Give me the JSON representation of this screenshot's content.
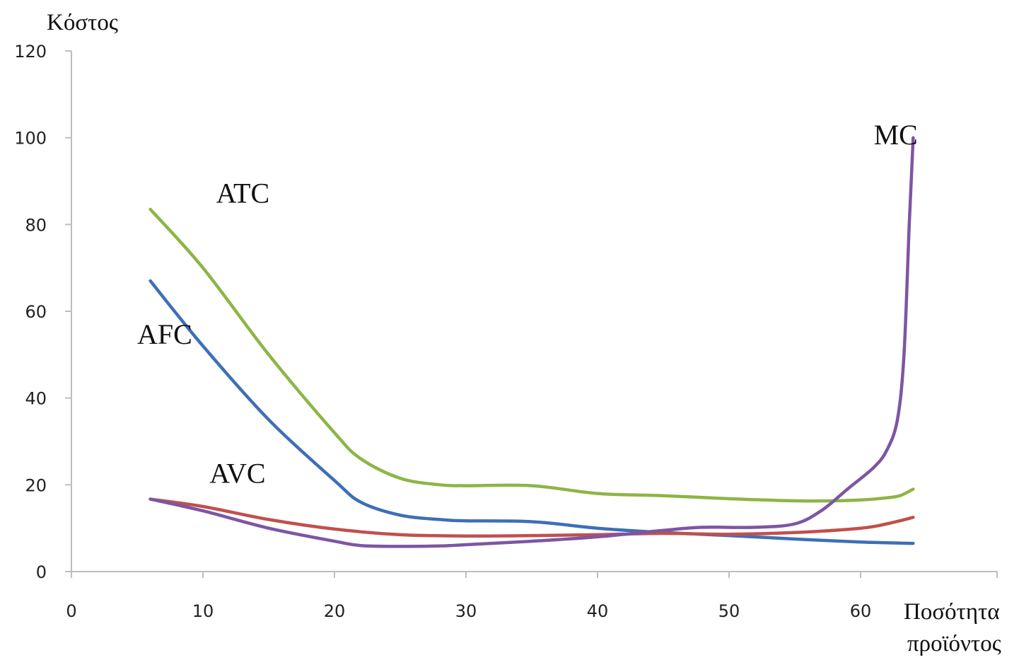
{
  "chart_data": {
    "type": "line",
    "ylabel": "Κόστος",
    "xlabel_lines": [
      "Ποσότητα",
      "προϊόντος"
    ],
    "xlim": [
      0,
      70
    ],
    "ylim": [
      0,
      120
    ],
    "x_ticks": [
      0,
      10,
      20,
      30,
      40,
      50,
      60
    ],
    "y_ticks": [
      0,
      20,
      40,
      60,
      80,
      100,
      120
    ],
    "grid": false,
    "series": [
      {
        "name": "ATC",
        "color": "#8db545",
        "x": [
          6,
          10,
          15,
          20,
          22,
          25,
          28,
          30,
          35,
          40,
          45,
          50,
          55,
          58,
          60,
          62,
          63,
          64
        ],
        "y": [
          83.5,
          70,
          50,
          32,
          26,
          21.5,
          20,
          19.8,
          19.8,
          18,
          17.5,
          16.8,
          16.3,
          16.3,
          16.5,
          17,
          17.5,
          19
        ]
      },
      {
        "name": "AFC",
        "color": "#3d6fb6",
        "x": [
          6,
          10,
          15,
          20,
          22,
          25,
          28,
          30,
          35,
          40,
          45,
          50,
          55,
          60,
          64
        ],
        "y": [
          67,
          52,
          35,
          21,
          16,
          13,
          12,
          11.7,
          11.5,
          10,
          9,
          8.3,
          7.5,
          6.8,
          6.5
        ]
      },
      {
        "name": "AVC",
        "color": "#c0504d",
        "x": [
          6,
          10,
          15,
          20,
          25,
          30,
          35,
          40,
          45,
          50,
          55,
          60,
          62,
          64
        ],
        "y": [
          16.7,
          15,
          12,
          9.8,
          8.5,
          8.2,
          8.3,
          8.5,
          8.8,
          8.6,
          9,
          10,
          11,
          12.5
        ]
      },
      {
        "name": "MC",
        "color": "#7e55a3",
        "x": [
          6,
          10,
          15,
          20,
          22,
          25,
          28,
          30,
          35,
          40,
          45,
          48,
          52,
          55,
          57,
          59,
          61,
          62,
          62.8,
          63.3,
          63.7,
          64
        ],
        "y": [
          16.7,
          14,
          10,
          7,
          6,
          5.8,
          5.9,
          6.2,
          7,
          8,
          9.5,
          10.2,
          10.2,
          11,
          14,
          19,
          24,
          28,
          35,
          50,
          80,
          100
        ]
      }
    ],
    "annotations": [
      {
        "text": "ATC",
        "x": 11,
        "y": 85
      },
      {
        "text": "AFC",
        "x": 5,
        "y": 52.5
      },
      {
        "text": "AVC",
        "x": 10.5,
        "y": 20.5
      },
      {
        "text": "MC",
        "x": 61,
        "y": 98.5
      }
    ]
  }
}
